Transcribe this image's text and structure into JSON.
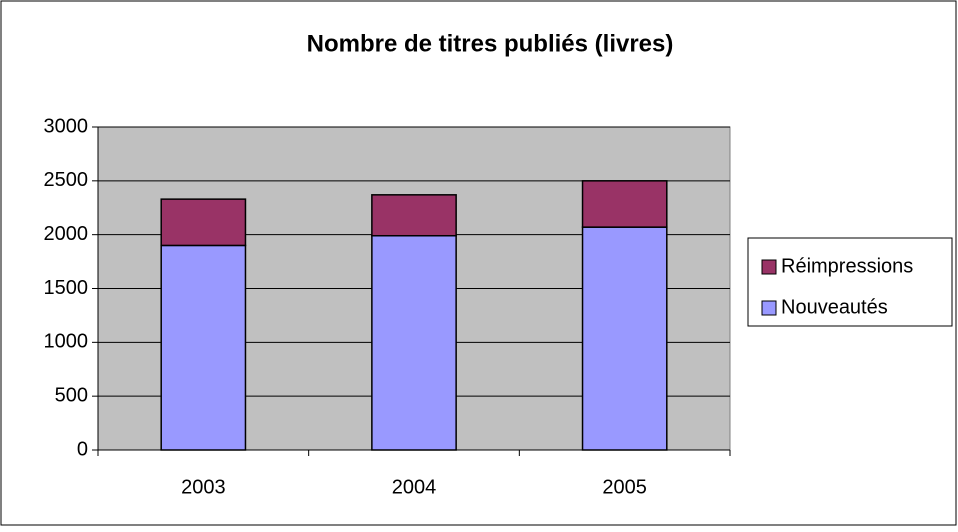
{
  "chart_data": {
    "type": "stacked-bar",
    "title": "Nombre de titres publiés (livres)",
    "categories": [
      "2003",
      "2004",
      "2005"
    ],
    "series": [
      {
        "name": "Nouveautés",
        "color": "#9999ff",
        "values": [
          1900,
          1990,
          2070
        ]
      },
      {
        "name": "Réimpressions",
        "color": "#993366",
        "values": [
          430,
          380,
          430
        ]
      }
    ],
    "ylim": [
      0,
      3000
    ],
    "yticks": [
      0,
      500,
      1000,
      1500,
      2000,
      2500,
      3000
    ],
    "grid": true,
    "legend": "right"
  }
}
